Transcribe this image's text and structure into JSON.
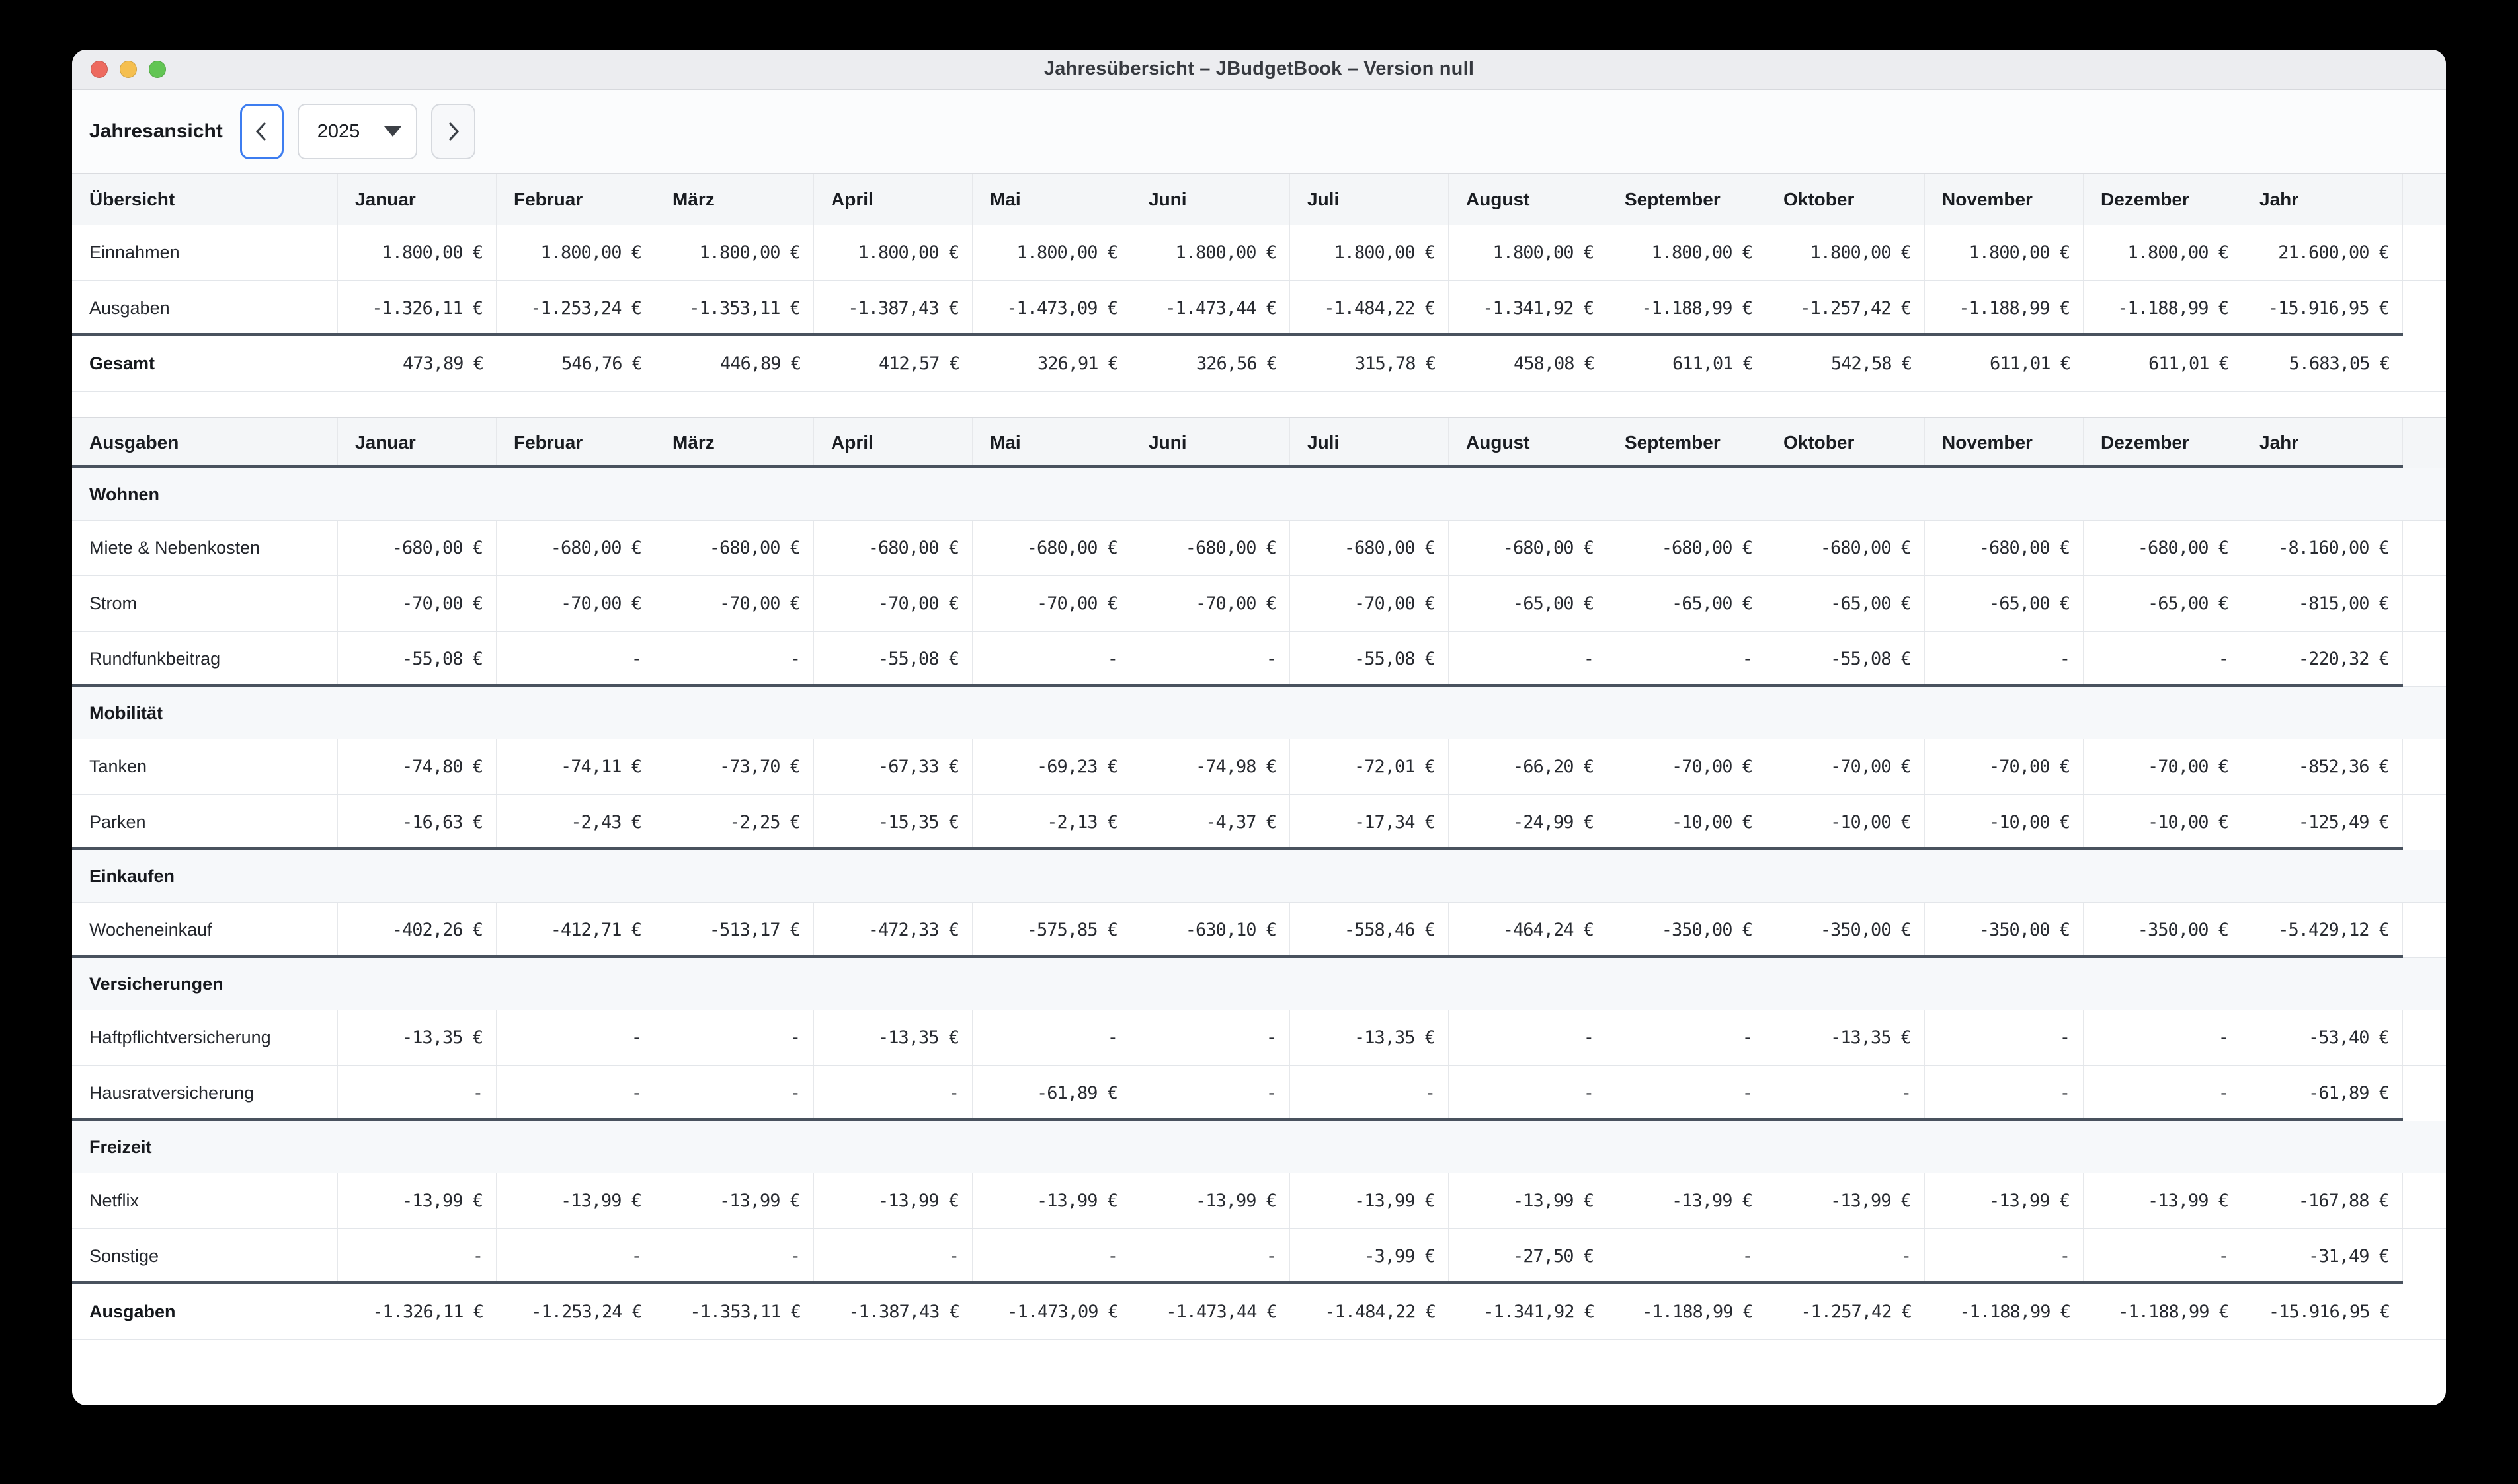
{
  "window": {
    "title": "Jahresübersicht – JBudgetBook – Version null"
  },
  "colors": {
    "traffic_close": "#ed6a5f",
    "traffic_minimize": "#f5bf4f",
    "traffic_zoom": "#62c554",
    "focus_ring": "#3d7df0",
    "section_divider": "#49525e"
  },
  "toolbar": {
    "view_label": "Jahresansicht",
    "year": "2025"
  },
  "columns": {
    "months": [
      "Januar",
      "Februar",
      "März",
      "April",
      "Mai",
      "Juni",
      "Juli",
      "August",
      "September",
      "Oktober",
      "November",
      "Dezember"
    ],
    "year_col": "Jahr"
  },
  "overview_table": {
    "corner_header": "Übersicht",
    "rows": [
      {
        "label": "Einnahmen",
        "values": [
          "1.800,00 €",
          "1.800,00 €",
          "1.800,00 €",
          "1.800,00 €",
          "1.800,00 €",
          "1.800,00 €",
          "1.800,00 €",
          "1.800,00 €",
          "1.800,00 €",
          "1.800,00 €",
          "1.800,00 €",
          "1.800,00 €",
          "21.600,00 €"
        ]
      },
      {
        "label": "Ausgaben",
        "values": [
          "-1.326,11 €",
          "-1.253,24 €",
          "-1.353,11 €",
          "-1.387,43 €",
          "-1.473,09 €",
          "-1.473,44 €",
          "-1.484,22 €",
          "-1.341,92 €",
          "-1.188,99 €",
          "-1.257,42 €",
          "-1.188,99 €",
          "-1.188,99 €",
          "-15.916,95 €"
        ]
      }
    ],
    "total": {
      "label": "Gesamt",
      "values": [
        "473,89 €",
        "546,76 €",
        "446,89 €",
        "412,57 €",
        "326,91 €",
        "326,56 €",
        "315,78 €",
        "458,08 €",
        "611,01 €",
        "542,58 €",
        "611,01 €",
        "611,01 €",
        "5.683,05 €"
      ]
    }
  },
  "expenses_table": {
    "corner_header": "Ausgaben",
    "sections": [
      {
        "category": "Wohnen",
        "rows": [
          {
            "label": "Miete & Nebenkosten",
            "values": [
              "-680,00 €",
              "-680,00 €",
              "-680,00 €",
              "-680,00 €",
              "-680,00 €",
              "-680,00 €",
              "-680,00 €",
              "-680,00 €",
              "-680,00 €",
              "-680,00 €",
              "-680,00 €",
              "-680,00 €",
              "-8.160,00 €"
            ]
          },
          {
            "label": "Strom",
            "values": [
              "-70,00 €",
              "-70,00 €",
              "-70,00 €",
              "-70,00 €",
              "-70,00 €",
              "-70,00 €",
              "-70,00 €",
              "-65,00 €",
              "-65,00 €",
              "-65,00 €",
              "-65,00 €",
              "-65,00 €",
              "-815,00 €"
            ]
          },
          {
            "label": "Rundfunkbeitrag",
            "values": [
              "-55,08 €",
              "-",
              "-",
              "-55,08 €",
              "-",
              "-",
              "-55,08 €",
              "-",
              "-",
              "-55,08 €",
              "-",
              "-",
              "-220,32 €"
            ]
          }
        ]
      },
      {
        "category": "Mobilität",
        "rows": [
          {
            "label": "Tanken",
            "values": [
              "-74,80 €",
              "-74,11 €",
              "-73,70 €",
              "-67,33 €",
              "-69,23 €",
              "-74,98 €",
              "-72,01 €",
              "-66,20 €",
              "-70,00 €",
              "-70,00 €",
              "-70,00 €",
              "-70,00 €",
              "-852,36 €"
            ]
          },
          {
            "label": "Parken",
            "values": [
              "-16,63 €",
              "-2,43 €",
              "-2,25 €",
              "-15,35 €",
              "-2,13 €",
              "-4,37 €",
              "-17,34 €",
              "-24,99 €",
              "-10,00 €",
              "-10,00 €",
              "-10,00 €",
              "-10,00 €",
              "-125,49 €"
            ]
          }
        ]
      },
      {
        "category": "Einkaufen",
        "rows": [
          {
            "label": "Wocheneinkauf",
            "values": [
              "-402,26 €",
              "-412,71 €",
              "-513,17 €",
              "-472,33 €",
              "-575,85 €",
              "-630,10 €",
              "-558,46 €",
              "-464,24 €",
              "-350,00 €",
              "-350,00 €",
              "-350,00 €",
              "-350,00 €",
              "-5.429,12 €"
            ]
          }
        ]
      },
      {
        "category": "Versicherungen",
        "rows": [
          {
            "label": "Haftpflichtversicherung",
            "values": [
              "-13,35 €",
              "-",
              "-",
              "-13,35 €",
              "-",
              "-",
              "-13,35 €",
              "-",
              "-",
              "-13,35 €",
              "-",
              "-",
              "-53,40 €"
            ]
          },
          {
            "label": "Hausratversicherung",
            "values": [
              "-",
              "-",
              "-",
              "-",
              "-61,89 €",
              "-",
              "-",
              "-",
              "-",
              "-",
              "-",
              "-",
              "-61,89 €"
            ]
          }
        ]
      },
      {
        "category": "Freizeit",
        "rows": [
          {
            "label": "Netflix",
            "values": [
              "-13,99 €",
              "-13,99 €",
              "-13,99 €",
              "-13,99 €",
              "-13,99 €",
              "-13,99 €",
              "-13,99 €",
              "-13,99 €",
              "-13,99 €",
              "-13,99 €",
              "-13,99 €",
              "-13,99 €",
              "-167,88 €"
            ]
          },
          {
            "label": "Sonstige",
            "values": [
              "-",
              "-",
              "-",
              "-",
              "-",
              "-",
              "-3,99 €",
              "-27,50 €",
              "-",
              "-",
              "-",
              "-",
              "-31,49 €"
            ]
          }
        ]
      }
    ],
    "total": {
      "label": "Ausgaben",
      "values": [
        "-1.326,11 €",
        "-1.253,24 €",
        "-1.353,11 €",
        "-1.387,43 €",
        "-1.473,09 €",
        "-1.473,44 €",
        "-1.484,22 €",
        "-1.341,92 €",
        "-1.188,99 €",
        "-1.257,42 €",
        "-1.188,99 €",
        "-1.188,99 €",
        "-15.916,95 €"
      ]
    }
  }
}
